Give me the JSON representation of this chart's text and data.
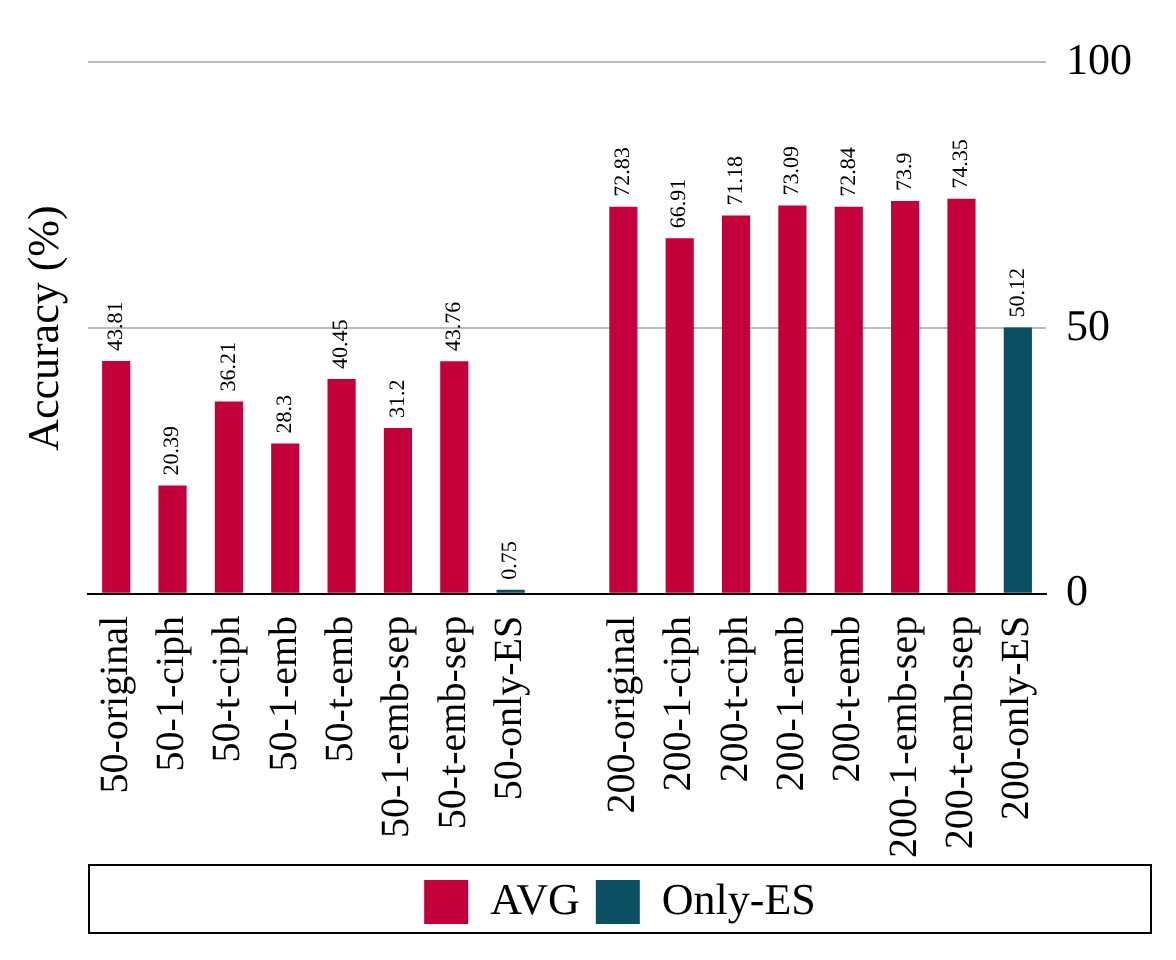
{
  "chart_data": {
    "type": "bar",
    "ylabel": "Accuracy (%)",
    "categories": [
      "50-original",
      "50-1-ciph",
      "50-t-ciph",
      "50-1-emb",
      "50-t-emb",
      "50-1-emb-sep",
      "50-t-emb-sep",
      "50-only-ES",
      null,
      "200-original",
      "200-1-ciph",
      "200-t-ciph",
      "200-1-emb",
      "200-t-emb",
      "200-1-emb-sep",
      "200-t-emb-sep",
      "200-only-ES"
    ],
    "series": [
      {
        "name": "AVG",
        "color": "#c4003c",
        "values": [
          43.81,
          20.39,
          36.21,
          28.3,
          40.45,
          31.2,
          43.76,
          null,
          null,
          72.83,
          66.91,
          71.18,
          73.09,
          72.84,
          73.9,
          74.35,
          null
        ]
      },
      {
        "name": "Only-ES",
        "color": "#0b4f63",
        "values": [
          null,
          null,
          null,
          null,
          null,
          null,
          null,
          0.75,
          null,
          null,
          null,
          null,
          null,
          null,
          null,
          null,
          50.12
        ]
      }
    ],
    "ylim": [
      0,
      100
    ],
    "yticks": [
      0,
      50,
      100
    ],
    "grid": "y",
    "legend": "bottom",
    "data_labels": true
  }
}
